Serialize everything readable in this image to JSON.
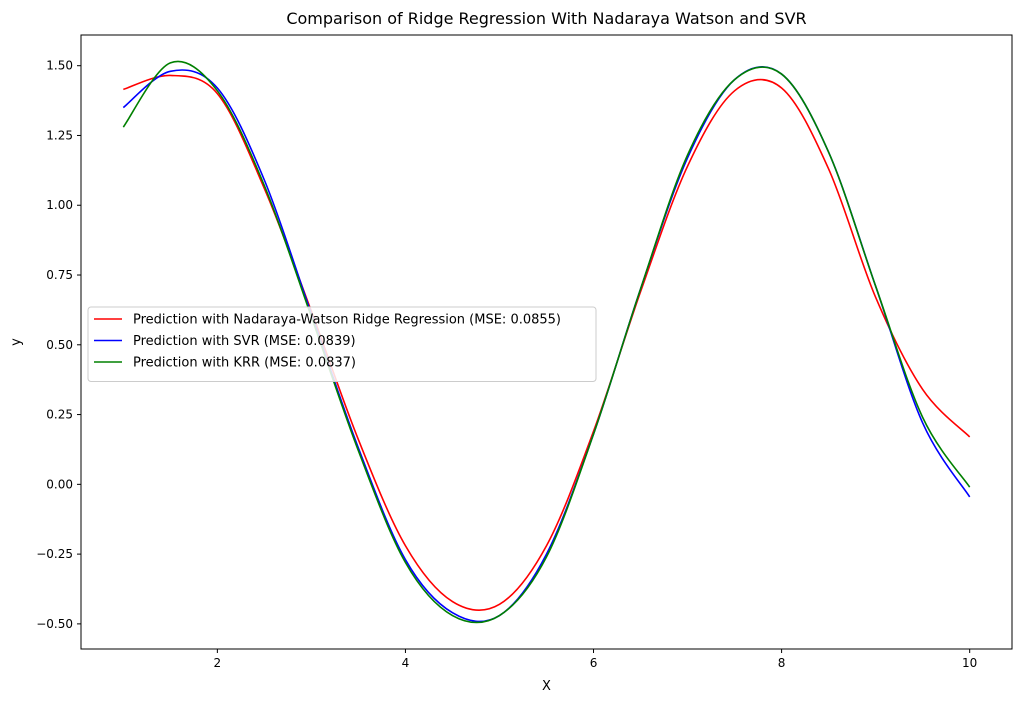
{
  "chart_data": {
    "type": "line",
    "title": "Comparison of Ridge Regression With Nadaraya Watson and SVR",
    "xlabel": "X",
    "ylabel": "y",
    "xlim": [
      0.55,
      10.45
    ],
    "ylim": [
      -0.59,
      1.61
    ],
    "xticks": [
      2,
      4,
      6,
      8,
      10
    ],
    "xtick_labels": [
      "2",
      "4",
      "6",
      "8",
      "10"
    ],
    "yticks": [
      -0.5,
      -0.25,
      0.0,
      0.25,
      0.5,
      0.75,
      1.0,
      1.25,
      1.5
    ],
    "ytick_labels": [
      "−0.50",
      "−0.25",
      "0.00",
      "0.25",
      "0.50",
      "0.75",
      "1.00",
      "1.25",
      "1.50"
    ],
    "grid": false,
    "legend_position": "center-left",
    "series": [
      {
        "name": "Prediction with Nadaraya-Watson Ridge Regression (MSE: 0.0855)",
        "color": "#ff0000",
        "x": [
          1.0,
          1.5,
          2.0,
          2.5,
          3.0,
          3.5,
          4.0,
          4.5,
          5.0,
          5.5,
          6.0,
          6.5,
          7.0,
          7.5,
          8.0,
          8.5,
          9.0,
          9.5,
          10.0
        ],
        "y": [
          1.415,
          1.465,
          1.4,
          1.06,
          0.62,
          0.16,
          -0.22,
          -0.42,
          -0.43,
          -0.22,
          0.19,
          0.69,
          1.14,
          1.41,
          1.42,
          1.13,
          0.67,
          0.34,
          0.17
        ]
      },
      {
        "name": "Prediction with SVR (MSE: 0.0839)",
        "color": "#0000ff",
        "x": [
          1.0,
          1.5,
          2.0,
          2.5,
          3.0,
          3.5,
          4.0,
          4.5,
          5.0,
          5.5,
          6.0,
          6.5,
          7.0,
          7.5,
          8.0,
          8.5,
          9.0,
          9.5,
          10.0
        ],
        "y": [
          1.35,
          1.48,
          1.42,
          1.09,
          0.61,
          0.13,
          -0.27,
          -0.46,
          -0.47,
          -0.25,
          0.18,
          0.7,
          1.17,
          1.45,
          1.47,
          1.19,
          0.71,
          0.22,
          -0.045
        ]
      },
      {
        "name": "Prediction with KRR (MSE: 0.0837)",
        "color": "#008000",
        "x": [
          1.0,
          1.5,
          2.0,
          2.5,
          3.0,
          3.5,
          4.0,
          4.5,
          5.0,
          5.5,
          6.0,
          6.5,
          7.0,
          7.5,
          8.0,
          8.5,
          9.0,
          9.5,
          10.0
        ],
        "y": [
          1.28,
          1.51,
          1.41,
          1.07,
          0.6,
          0.12,
          -0.28,
          -0.47,
          -0.47,
          -0.26,
          0.18,
          0.7,
          1.18,
          1.45,
          1.47,
          1.19,
          0.71,
          0.24,
          -0.01
        ]
      }
    ]
  }
}
